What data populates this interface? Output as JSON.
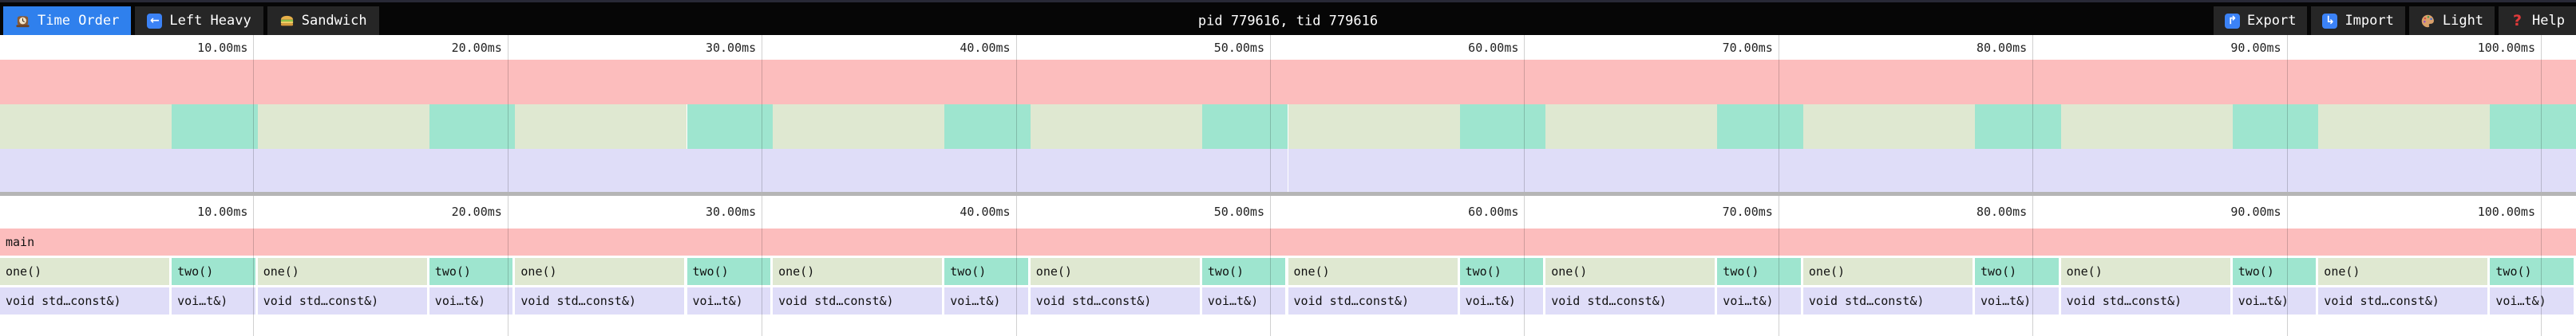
{
  "toolbar": {
    "title": "pid 779616, tid 779616",
    "tabs": [
      {
        "label": "Time Order",
        "icon": "clock-icon",
        "active": true
      },
      {
        "label": "Left Heavy",
        "icon": "left-arrow-icon",
        "active": false
      },
      {
        "label": "Sandwich",
        "icon": "sandwich-icon",
        "active": false
      }
    ],
    "actions": [
      {
        "label": "Export",
        "icon": "export-icon"
      },
      {
        "label": "Import",
        "icon": "import-icon"
      },
      {
        "label": "Light",
        "icon": "palette-icon"
      },
      {
        "label": "Help",
        "icon": "help-icon"
      }
    ]
  },
  "colors": {
    "accent": "#2f80ed",
    "toolbar_bg": "#060606",
    "toolbar_button_bg": "#262626",
    "frame_main": "#fcbdbd",
    "frame_one": "#dfe8d1",
    "frame_two": "#9ee5cf",
    "frame_leaf": "#dfddf8",
    "gridline": "#0000002e",
    "splitter": "#b5b5b5",
    "ruler_text": "#222222",
    "frame_text": "#111111"
  },
  "chart_data": {
    "type": "flamegraph",
    "view": "time-order",
    "unit": "ms",
    "total_ms": 101.35,
    "tick_interval_ms": 10,
    "ticks": [
      "10.00ms",
      "20.00ms",
      "30.00ms",
      "40.00ms",
      "50.00ms",
      "60.00ms",
      "70.00ms",
      "80.00ms",
      "90.00ms",
      "100.00ms"
    ],
    "cycles": 10,
    "cycle_ms": 10.135,
    "root": {
      "label": "main",
      "start_ms": 0,
      "duration_ms": 101.35
    },
    "pattern": [
      {
        "label": "one()",
        "duration_ms": 6.755,
        "color_key": "frame_one",
        "child_label": "void std…const&)",
        "child_color_key": "frame_leaf"
      },
      {
        "label": "two()",
        "duration_ms": 3.38,
        "color_key": "frame_two",
        "child_label": "voi…t&)",
        "child_color_key": "frame_leaf"
      }
    ]
  }
}
